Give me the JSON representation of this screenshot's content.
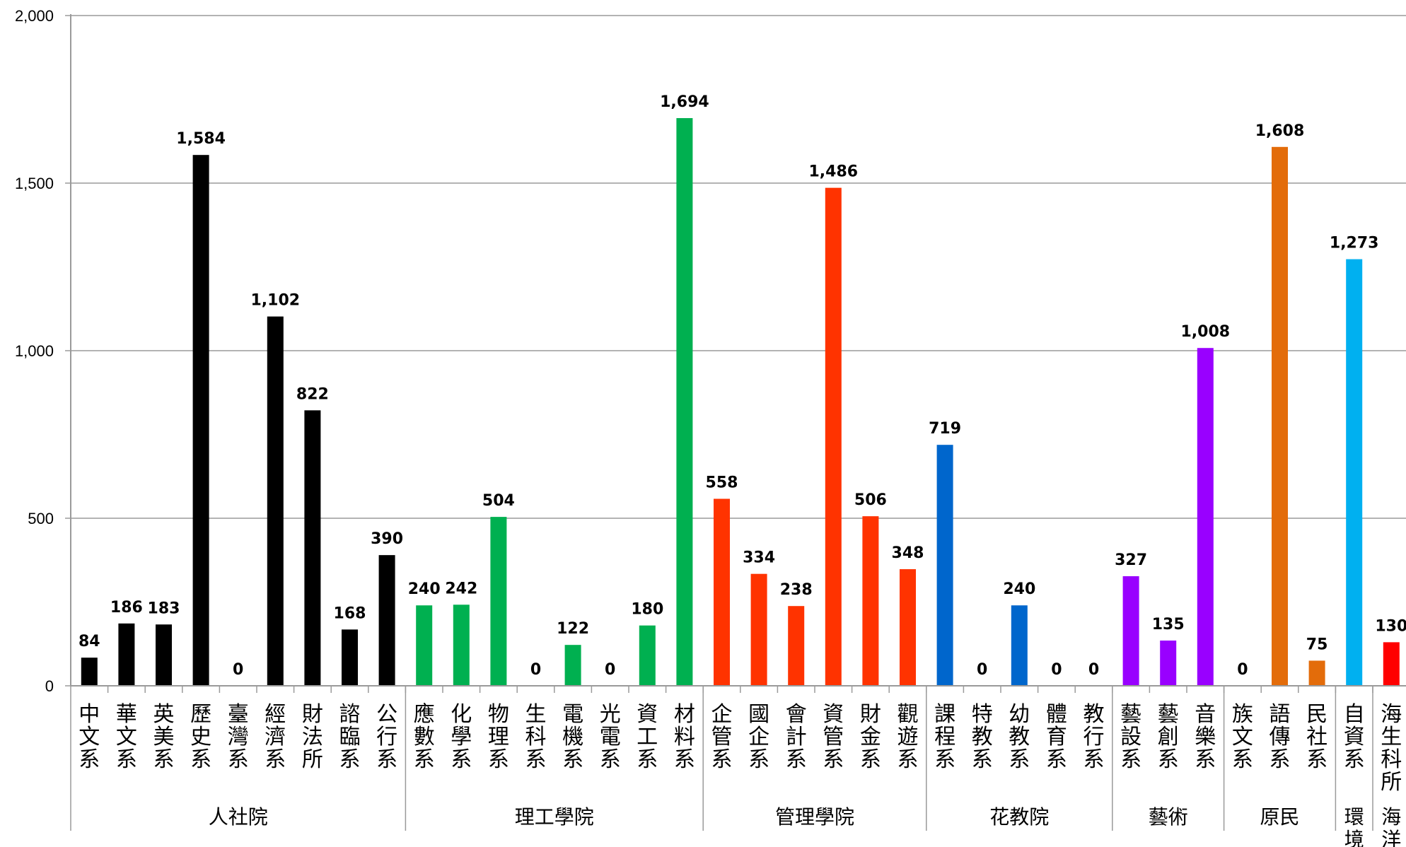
{
  "chart_data": {
    "type": "bar",
    "title": "",
    "xlabel": "",
    "ylabel": "",
    "ylim": [
      0,
      2000
    ],
    "yticks": [
      0,
      500,
      1000,
      1500,
      2000
    ],
    "ytick_labels": [
      "0",
      "500",
      "1,000",
      "1,500",
      "2,000"
    ],
    "grid": true,
    "legend": "none",
    "categories": [
      "中文系",
      "華文系",
      "英美系",
      "歷史系",
      "臺灣系",
      "經濟系",
      "財法所",
      "諮臨系",
      "公行系",
      "應數系",
      "化學系",
      "物理系",
      "生科系",
      "電機系",
      "光電系",
      "資工系",
      "材料系",
      "企管系",
      "國企系",
      "會計系",
      "資管系",
      "財金系",
      "觀遊系",
      "課程系",
      "特教系",
      "幼教系",
      "體育系",
      "教行系",
      "藝設系",
      "藝創系",
      "音樂系",
      "族文系",
      "語傳系",
      "民社系",
      "自資系",
      "海生科所"
    ],
    "values": [
      84,
      186,
      183,
      1584,
      0,
      1102,
      822,
      168,
      390,
      240,
      242,
      504,
      0,
      122,
      0,
      180,
      1694,
      558,
      334,
      238,
      1486,
      506,
      348,
      719,
      0,
      240,
      0,
      0,
      327,
      135,
      1008,
      0,
      1608,
      75,
      1273,
      130
    ],
    "value_labels": [
      "84",
      "186",
      "183",
      "1,584",
      "0",
      "1,102",
      "822",
      "168",
      "390",
      "240",
      "242",
      "504",
      "0",
      "122",
      "0",
      "180",
      "1,694",
      "558",
      "334",
      "238",
      "1,486",
      "506",
      "348",
      "719",
      "0",
      "240",
      "0",
      "0",
      "327",
      "135",
      "1,008",
      "0",
      "1,608",
      "75",
      "1,273",
      "130"
    ],
    "groups": [
      {
        "name": "人社院",
        "count": 9,
        "color": "#000000"
      },
      {
        "name": "理工學院",
        "count": 8,
        "color": "#00b050"
      },
      {
        "name": "管理學院",
        "count": 6,
        "color": "#ff3300"
      },
      {
        "name": "花教院",
        "count": 5,
        "color": "#0066cc"
      },
      {
        "name": "藝術",
        "count": 3,
        "color": "#9900ff"
      },
      {
        "name": "原民",
        "count": 3,
        "color": "#e36c0a"
      },
      {
        "name": "環境",
        "count": 1,
        "color": "#00b0f0"
      },
      {
        "name": "海洋",
        "count": 1,
        "color": "#ff0000"
      }
    ]
  }
}
